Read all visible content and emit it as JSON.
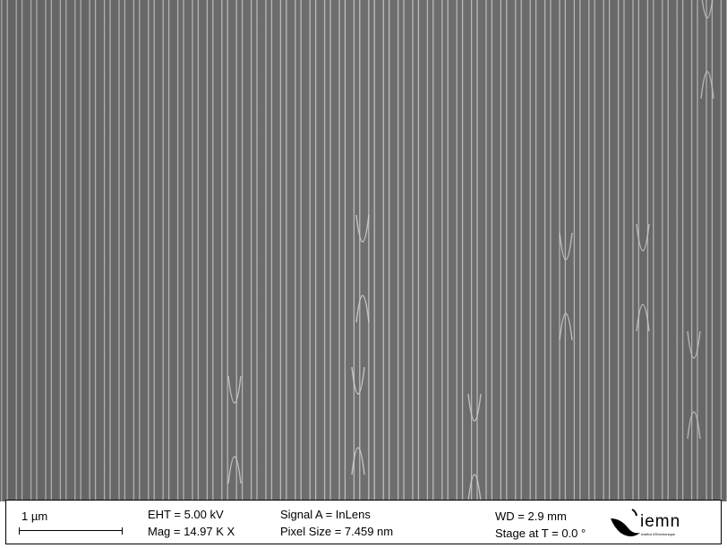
{
  "sem": {
    "background": "#6f6f6f",
    "ridge_color": "#d8d8d8"
  },
  "footer": {
    "scale_label": "1 µm",
    "eht": "EHT =  5.00 kV",
    "mag": "Mag =  14.97 K X",
    "signal": "Signal A = InLens",
    "pixel_size": "Pixel Size = 7.459 nm",
    "wd": "WD =  2.9 mm",
    "stage": "Stage at T =   0.0 °",
    "logo_text": "iemn",
    "logo_sub": "Institut d'Electronique"
  }
}
